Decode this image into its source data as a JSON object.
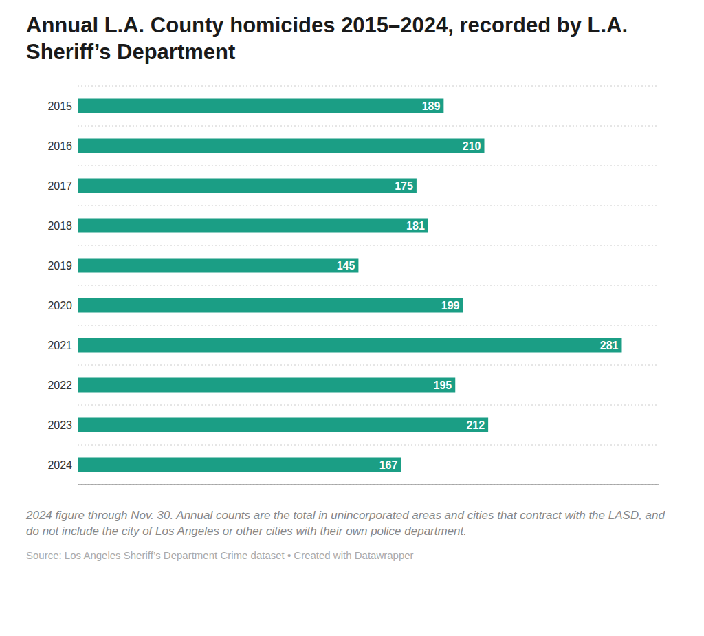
{
  "chart_data": {
    "type": "bar",
    "orientation": "horizontal",
    "title": "Annual L.A. County homicides 2015–2024, recorded by L.A. Sheriff’s Department",
    "categories": [
      "2015",
      "2016",
      "2017",
      "2018",
      "2019",
      "2020",
      "2021",
      "2022",
      "2023",
      "2024"
    ],
    "values": [
      189,
      210,
      175,
      181,
      145,
      199,
      281,
      195,
      212,
      167
    ],
    "color": "#1b9e85",
    "xlim": [
      0,
      300
    ],
    "grid": true,
    "data_labels": true,
    "tick_labels": "y",
    "annotations": [
      "2024 figure through Nov. 30. Annual counts are the total in unincorporated areas and cities that contract with the LASD, and do not include the city of Los Angeles or other cities with their own police department.",
      "Source: Los Angeles Sheriff’s Department Crime dataset • Created with Datawrapper"
    ]
  }
}
